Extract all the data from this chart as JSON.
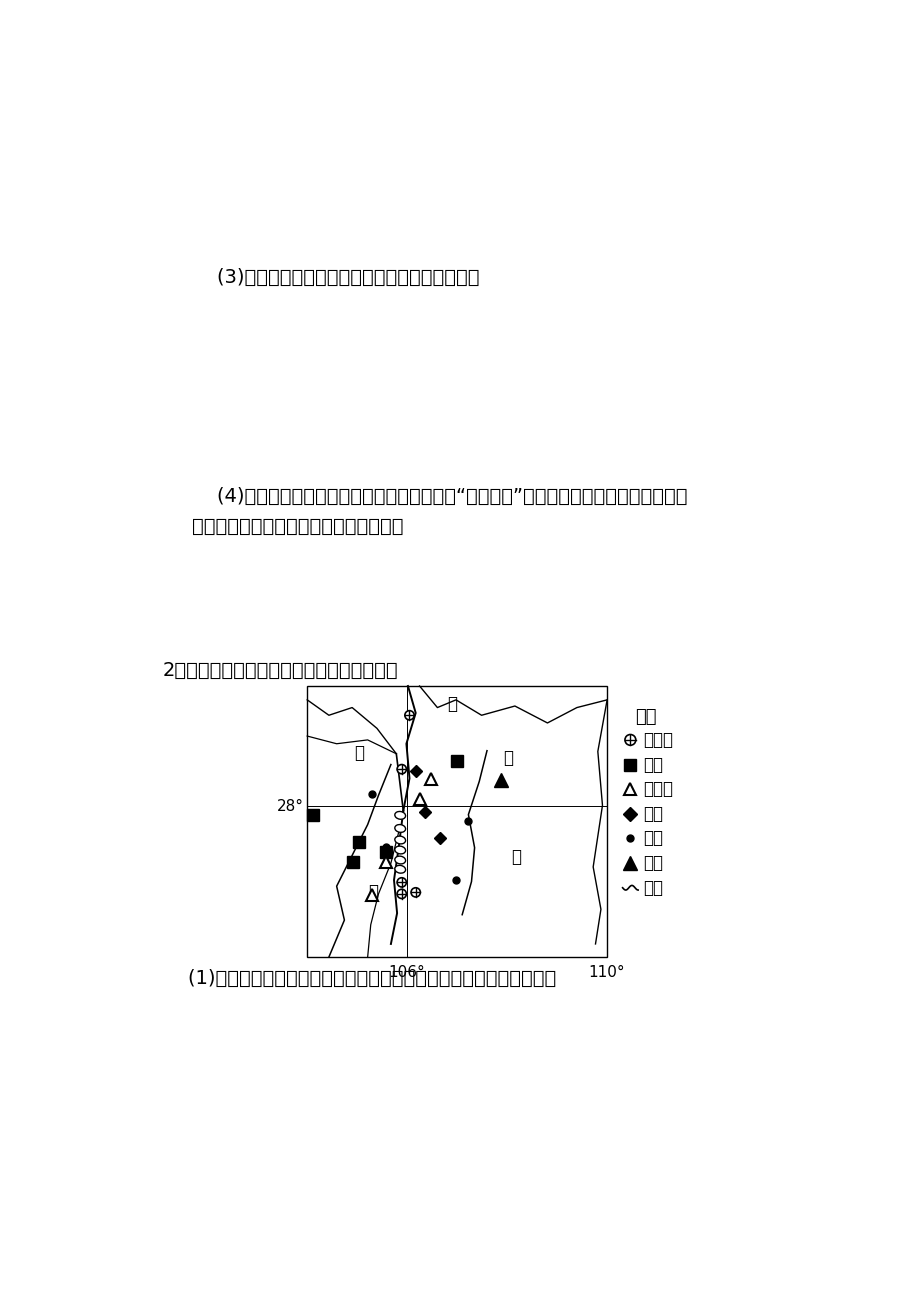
{
  "background_color": "#ffffff",
  "text_color": "#000000",
  "q3_text": "    (3)分析伊塑克湖东岐附近夏季多发洪灾的原因。",
  "q4_text_line1": "    (4)伊塑克湖州的居民对吉尔吉斯斯坦政府的“黄金战略”提出质疑，并组织了一系列的抜",
  "q4_text_line2": "议活动。请分析当地居民这样做的理由。",
  "q2_intro": "2．读甲河流域图，结合所学知识回答问题。",
  "q2_sub": "    (1)简述甲河流域发展有色冶金工业的自然区位优势及应注意的问题。",
  "legend_title": "图例",
  "legend_hydro": "水电站",
  "legend_coal": "煤矿",
  "legend_alum": "铝土矿",
  "legend_phos": "磷矿",
  "legend_scenic": "景点",
  "legend_peak": "山峰",
  "legend_river": "河流",
  "label_jiang": "江",
  "label_chang": "长",
  "label_jia": "甲",
  "label_yi": "乙",
  "label_bing": "丙",
  "label_28": "28°",
  "label_106": "106°",
  "label_110": "110°"
}
